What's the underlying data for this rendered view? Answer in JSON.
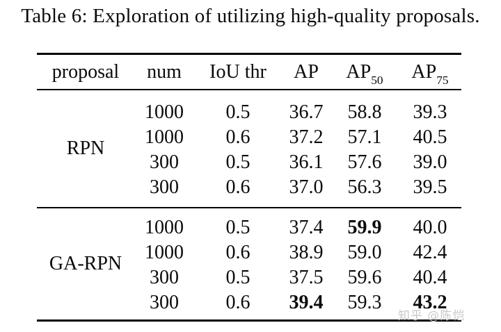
{
  "title": "Table 6: Exploration of utilizing high-quality proposals.",
  "table": {
    "headers": [
      {
        "text": "proposal",
        "sub": ""
      },
      {
        "text": "num",
        "sub": ""
      },
      {
        "text": "IoU thr",
        "sub": ""
      },
      {
        "text": "AP",
        "sub": ""
      },
      {
        "text": "AP",
        "sub": "50"
      },
      {
        "text": "AP",
        "sub": "75"
      }
    ],
    "groups": [
      {
        "label": "RPN",
        "rows": [
          {
            "cells": [
              "1000",
              "0.5",
              "36.7",
              "58.8",
              "39.3"
            ]
          },
          {
            "cells": [
              "1000",
              "0.6",
              "37.2",
              "57.1",
              "40.5"
            ]
          },
          {
            "cells": [
              "300",
              "0.5",
              "36.1",
              "57.6",
              "39.0"
            ]
          },
          {
            "cells": [
              "300",
              "0.6",
              "37.0",
              "56.3",
              "39.5"
            ]
          }
        ]
      },
      {
        "label": "GA-RPN",
        "rows": [
          {
            "cells": [
              "1000",
              "0.5",
              "37.4",
              "59.9",
              "40.0"
            ]
          },
          {
            "cells": [
              "1000",
              "0.6",
              "38.9",
              "59.0",
              "42.4"
            ]
          },
          {
            "cells": [
              "300",
              "0.5",
              "37.5",
              "59.6",
              "40.4"
            ]
          },
          {
            "cells": [
              "300",
              "0.6",
              "39.4",
              "59.3",
              "43.2"
            ]
          }
        ]
      }
    ],
    "bold_cells": [
      "table.groups.1.rows.0.cells.3",
      "table.groups.1.rows.3.cells.2",
      "table.groups.1.rows.3.cells.4"
    ]
  },
  "watermark": "知乎 @陈恺",
  "colors": {
    "text": "#0a0a0a",
    "rule": "#000000",
    "watermark": "#c9c9c9"
  }
}
